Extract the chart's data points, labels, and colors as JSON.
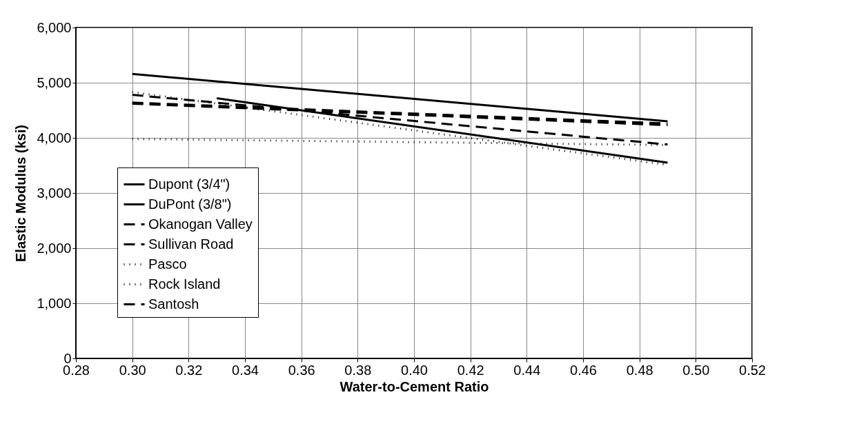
{
  "chart_data": {
    "type": "line",
    "xlabel": "Water-to-Cement Ratio",
    "ylabel": "Elastic Modulus (ksi)",
    "xlim": [
      0.28,
      0.52
    ],
    "xticks": [
      {
        "value": 0.28,
        "label": "0.28"
      },
      {
        "value": 0.3,
        "label": "0.30"
      },
      {
        "value": 0.32,
        "label": "0.32"
      },
      {
        "value": 0.34,
        "label": "0.34"
      },
      {
        "value": 0.36,
        "label": "0.36"
      },
      {
        "value": 0.38,
        "label": "0.38"
      },
      {
        "value": 0.4,
        "label": "0.40"
      },
      {
        "value": 0.42,
        "label": "0.42"
      },
      {
        "value": 0.44,
        "label": "0.44"
      },
      {
        "value": 0.46,
        "label": "0.46"
      },
      {
        "value": 0.48,
        "label": "0.48"
      },
      {
        "value": 0.5,
        "label": "0.50"
      },
      {
        "value": 0.52,
        "label": "0.52"
      }
    ],
    "ylim": [
      0,
      6000
    ],
    "yticks": [
      0,
      {
        "value": 1000,
        "label": "1,000"
      },
      {
        "value": 2000,
        "label": "2,000"
      },
      {
        "value": 3000,
        "label": "3,000"
      },
      {
        "value": 4000,
        "label": "4,000"
      },
      {
        "value": 5000,
        "label": "5,000"
      },
      {
        "value": 6000,
        "label": "6,000"
      }
    ],
    "grid": true,
    "legend": "bottom left",
    "series": [
      {
        "name": "Dupont (3/4\")",
        "color": "#000000",
        "line_style": "solid",
        "x": [
          0.3,
          0.49
        ],
        "values": [
          5160,
          4300
        ]
      },
      {
        "name": "DuPont (3/8\")",
        "color": "#000000",
        "line_style": "solid",
        "x": [
          0.33,
          0.49
        ],
        "values": [
          4720,
          3550
        ]
      },
      {
        "name": "Okanogan Valley",
        "color": "#000000",
        "line_style": "dashed",
        "x": [
          0.3,
          0.49
        ],
        "values": [
          4640,
          4260
        ]
      },
      {
        "name": "Sullivan Road",
        "color": "#000000",
        "line_style": "dashed",
        "x": [
          0.3,
          0.49
        ],
        "values": [
          4780,
          3880
        ]
      },
      {
        "name": "Pasco",
        "color": "#000000",
        "line_style": "dotted",
        "x": [
          0.3,
          0.49
        ],
        "values": [
          4830,
          3510
        ]
      },
      {
        "name": "Rock Island",
        "color": "#000000",
        "line_style": "dotted",
        "x": [
          0.3,
          0.49
        ],
        "values": [
          3980,
          3870
        ]
      },
      {
        "name": "Santosh",
        "color": "#000000",
        "line_style": "dashed",
        "x": [
          0.3,
          0.49
        ],
        "values": [
          4620,
          4230
        ]
      }
    ]
  }
}
